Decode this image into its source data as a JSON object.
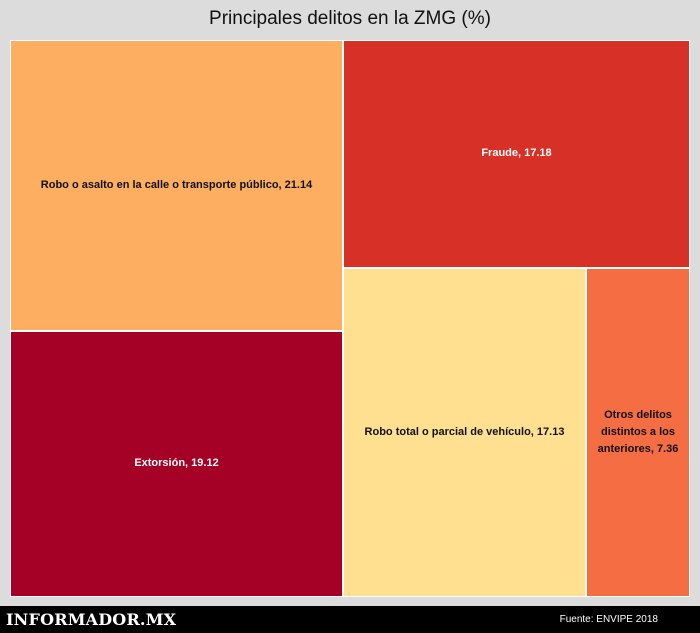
{
  "chart_data": {
    "type": "treemap",
    "title": "Principales delitos en la ZMG (%)",
    "items": [
      {
        "label": "Robo o asalto en la calle o transporte público, 21.14",
        "name": "Robo o asalto en la calle o transporte público",
        "value": 21.14,
        "color": "#fdae61",
        "text_color": "#111111"
      },
      {
        "label": "Fraude, 17.18",
        "name": "Fraude",
        "value": 17.18,
        "color": "#d73027",
        "text_color": "#ffffff"
      },
      {
        "label": "Extorsión, 19.12",
        "name": "Extorsión",
        "value": 19.12,
        "color": "#a50026",
        "text_color": "#ffffff"
      },
      {
        "label": "Robo total o parcial de vehículo, 17.13",
        "name": "Robo total o parcial de vehículo",
        "value": 17.13,
        "color": "#fee090",
        "text_color": "#111111"
      },
      {
        "label": "Otros delitos distintos a los anteriores, 7.36",
        "name": "Otros delitos distintos a los anteriores",
        "value": 7.36,
        "color": "#f46d43",
        "text_color": "#111111"
      }
    ]
  },
  "footer": {
    "logo": "INFORMADOR.MX",
    "source": "Fuente: ENVIPE 2018"
  }
}
